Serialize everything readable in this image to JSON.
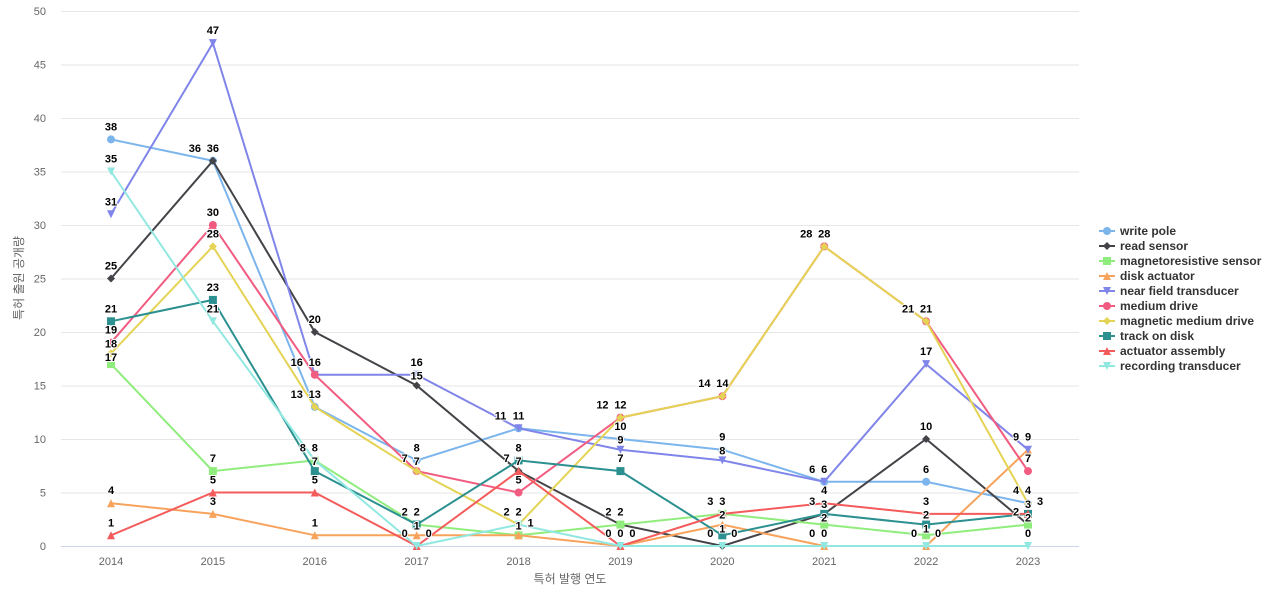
{
  "chart_data": {
    "type": "line",
    "title": "",
    "xlabel": "특허 발행 연도",
    "ylabel": "특허 출원 공개량",
    "x": [
      "2014",
      "2015",
      "2016",
      "2017",
      "2018",
      "2019",
      "2020",
      "2021",
      "2022",
      "2023"
    ],
    "ylim": [
      0,
      50
    ],
    "yticks": [
      0,
      5,
      10,
      15,
      20,
      25,
      30,
      35,
      40,
      45,
      50
    ],
    "grid": true,
    "legend_position": "right",
    "series": [
      {
        "name": "write pole",
        "color": "#7cb5ec",
        "marker": "circle",
        "values": [
          38,
          36,
          13,
          8,
          11,
          10,
          9,
          6,
          6,
          4
        ]
      },
      {
        "name": "read sensor",
        "color": "#434348",
        "marker": "diamond",
        "values": [
          25,
          36,
          20,
          15,
          7,
          2,
          0,
          3,
          10,
          2
        ]
      },
      {
        "name": "magnetoresistive sensor",
        "color": "#90ed7d",
        "marker": "square",
        "values": [
          17,
          7,
          8,
          2,
          1,
          2,
          3,
          2,
          1,
          2
        ]
      },
      {
        "name": "disk actuator",
        "color": "#f7a35c",
        "marker": "triangle",
        "values": [
          4,
          3,
          1,
          1,
          1,
          0,
          2,
          0,
          0,
          9
        ]
      },
      {
        "name": "near field transducer",
        "color": "#8085e9",
        "marker": "triangle-down",
        "values": [
          31,
          47,
          16,
          16,
          11,
          9,
          8,
          6,
          17,
          9
        ]
      },
      {
        "name": "medium drive",
        "color": "#f15c80",
        "marker": "circle",
        "values": [
          19,
          30,
          16,
          7,
          5,
          12,
          14,
          28,
          21,
          7
        ]
      },
      {
        "name": "magnetic medium drive",
        "color": "#e4d354",
        "marker": "diamond",
        "values": [
          18,
          28,
          13,
          7,
          2,
          12,
          14,
          28,
          21,
          4
        ]
      },
      {
        "name": "track on disk",
        "color": "#2b908f",
        "marker": "square",
        "values": [
          21,
          23,
          7,
          2,
          8,
          7,
          1,
          3,
          2,
          3
        ]
      },
      {
        "name": "actuator assembly",
        "color": "#f45b5b",
        "marker": "triangle",
        "values": [
          1,
          5,
          5,
          0,
          7,
          0,
          3,
          4,
          3,
          3
        ]
      },
      {
        "name": "recording transducer",
        "color": "#91e8e1",
        "marker": "triangle-down",
        "values": [
          35,
          21,
          8,
          0,
          2,
          0,
          0,
          0,
          0,
          0
        ]
      }
    ]
  }
}
